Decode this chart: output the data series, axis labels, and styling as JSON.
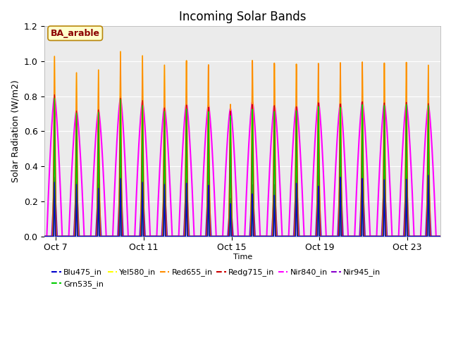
{
  "title": "Incoming Solar Bands",
  "xlabel": "Time",
  "ylabel": "Solar Radiation (W/m2)",
  "annotation": "BA_arable",
  "ylim": [
    0,
    1.2
  ],
  "xtick_labels": [
    "Oct 7",
    "Oct 11",
    "Oct 15",
    "Oct 19",
    "Oct 23"
  ],
  "series_order": [
    "Nir840_in",
    "Nir945_in",
    "Red655_in",
    "Redg715_in",
    "Yel580_in",
    "Grn535_in",
    "Blu475_in"
  ],
  "series": {
    "Blu475_in": {
      "color": "#0000cc",
      "lw": 1.0
    },
    "Grn535_in": {
      "color": "#00cc00",
      "lw": 1.0
    },
    "Yel580_in": {
      "color": "#ffff00",
      "lw": 1.0
    },
    "Red655_in": {
      "color": "#ff8c00",
      "lw": 1.2
    },
    "Redg715_in": {
      "color": "#cc0000",
      "lw": 1.0
    },
    "Nir840_in": {
      "color": "#ff00ff",
      "lw": 1.5
    },
    "Nir945_in": {
      "color": "#8800cc",
      "lw": 1.5
    }
  },
  "background_color": "#ebebeb",
  "grid_color": "#ffffff",
  "n_days": 18,
  "legend_labels": [
    "Blu475_in",
    "Grn535_in",
    "Yel580_in",
    "Red655_in",
    "Redg715_in",
    "Nir840_in",
    "Nir945_in"
  ]
}
